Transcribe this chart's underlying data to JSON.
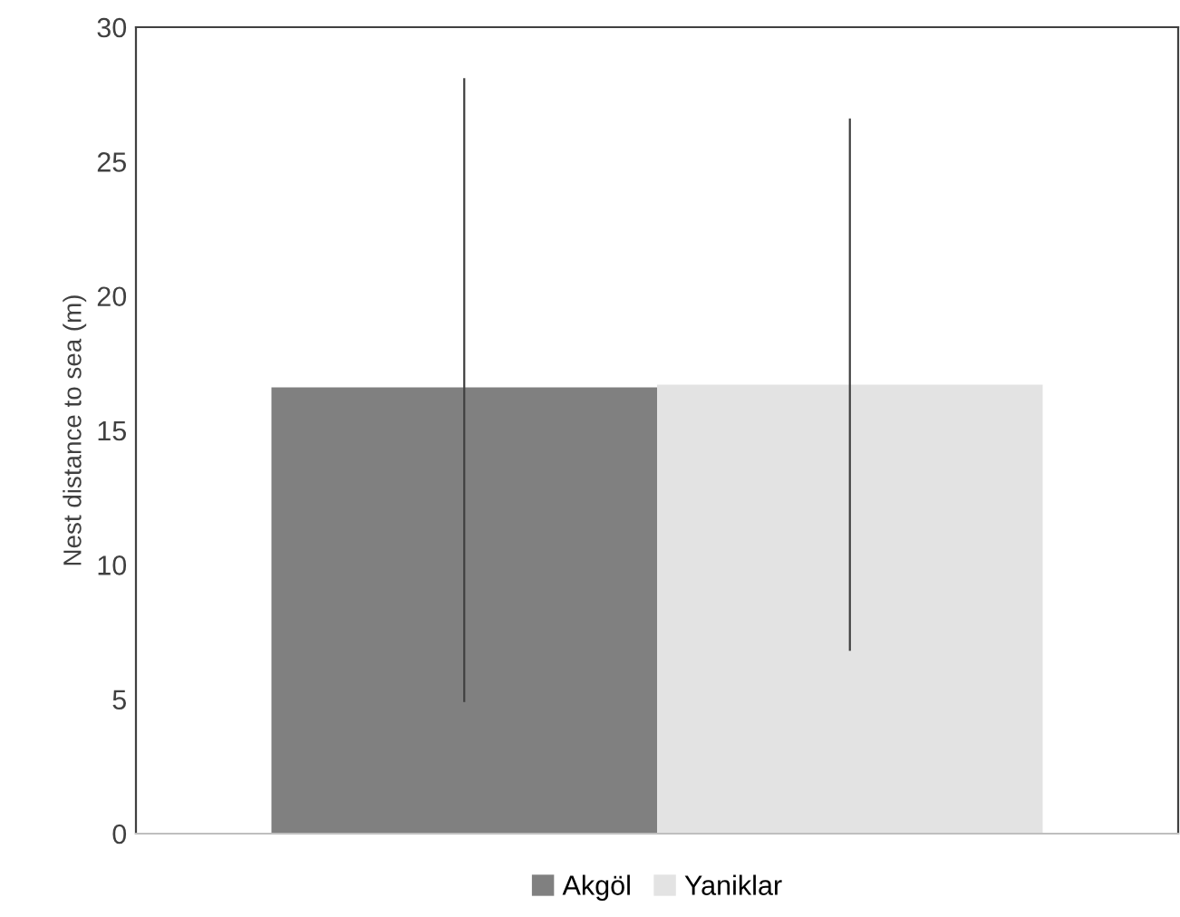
{
  "chart_data": {
    "type": "bar",
    "ylabel": "Nest distance to sea (m)",
    "categories": [
      null
    ],
    "series": [
      {
        "name": "Akgöl",
        "color": "#808080",
        "values": [
          16.6
        ],
        "errors": [
          [
            4.9,
            28.1
          ]
        ]
      },
      {
        "name": "Yaniklar",
        "color": "#e3e3e3",
        "values": [
          16.7
        ],
        "errors": [
          [
            6.8,
            26.6
          ]
        ]
      }
    ],
    "ylim": [
      0,
      30
    ],
    "yticks": [
      0,
      5,
      10,
      15,
      20,
      25,
      30
    ],
    "grid": false,
    "legend": "bottom"
  }
}
